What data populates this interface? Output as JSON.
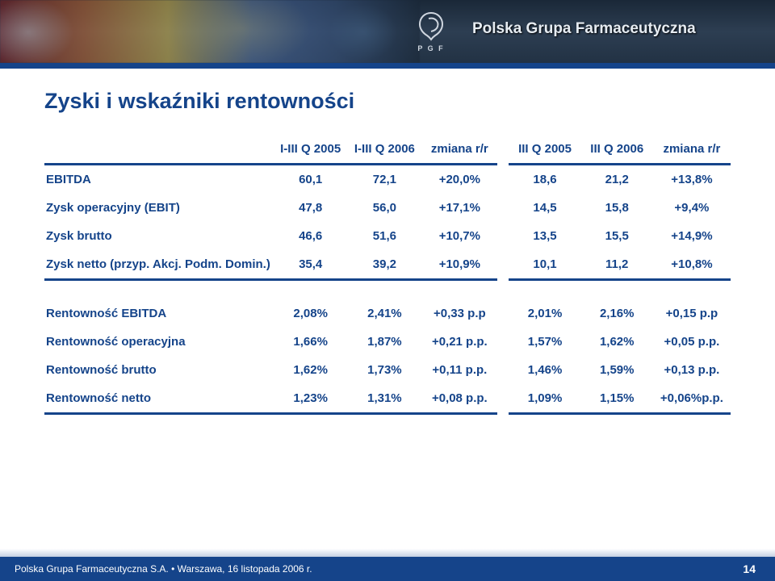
{
  "brand": "Polska Grupa Farmaceutyczna",
  "logo_abbr": "P G F",
  "title": "Zyski i wskaźniki rentowności",
  "colors": {
    "primary": "#15448a",
    "header_bg": "#223244",
    "text_on_dark": "#e6ecf2",
    "footer_bg": "#15448a"
  },
  "table": {
    "headers": {
      "c1": "I-III Q 2005",
      "c2": "I-III Q 2006",
      "c3": "zmiana r/r",
      "c4": "III Q 2005",
      "c5": "III Q 2006",
      "c6": "zmiana r/r"
    },
    "section1": [
      {
        "label": "EBITDA",
        "v": [
          "60,1",
          "72,1",
          "+20,0%",
          "18,6",
          "21,2",
          "+13,8%"
        ]
      },
      {
        "label": "Zysk operacyjny (EBIT)",
        "v": [
          "47,8",
          "56,0",
          "+17,1%",
          "14,5",
          "15,8",
          "+9,4%"
        ]
      },
      {
        "label": "Zysk brutto",
        "v": [
          "46,6",
          "51,6",
          "+10,7%",
          "13,5",
          "15,5",
          "+14,9%"
        ]
      },
      {
        "label": "Zysk netto (przyp. Akcj. Podm. Domin.)",
        "v": [
          "35,4",
          "39,2",
          "+10,9%",
          "10,1",
          "11,2",
          "+10,8%"
        ]
      }
    ],
    "section2": [
      {
        "label": "Rentowność EBITDA",
        "v": [
          "2,08%",
          "2,41%",
          "+0,33 p.p",
          "2,01%",
          "2,16%",
          "+0,15 p.p"
        ]
      },
      {
        "label": "Rentowność operacyjna",
        "v": [
          "1,66%",
          "1,87%",
          "+0,21 p.p.",
          "1,57%",
          "1,62%",
          "+0,05 p.p."
        ]
      },
      {
        "label": "Rentowność brutto",
        "v": [
          "1,62%",
          "1,73%",
          "+0,11 p.p.",
          "1,46%",
          "1,59%",
          "+0,13 p.p."
        ]
      },
      {
        "label": "Rentowność netto",
        "v": [
          "1,23%",
          "1,31%",
          "+0,08 p.p.",
          "1,09%",
          "1,15%",
          "+0,06%p.p."
        ]
      }
    ]
  },
  "footer": {
    "text": "Polska Grupa Farmaceutyczna S.A. • Warszawa, 16 listopada 2006 r.",
    "page": "14"
  }
}
